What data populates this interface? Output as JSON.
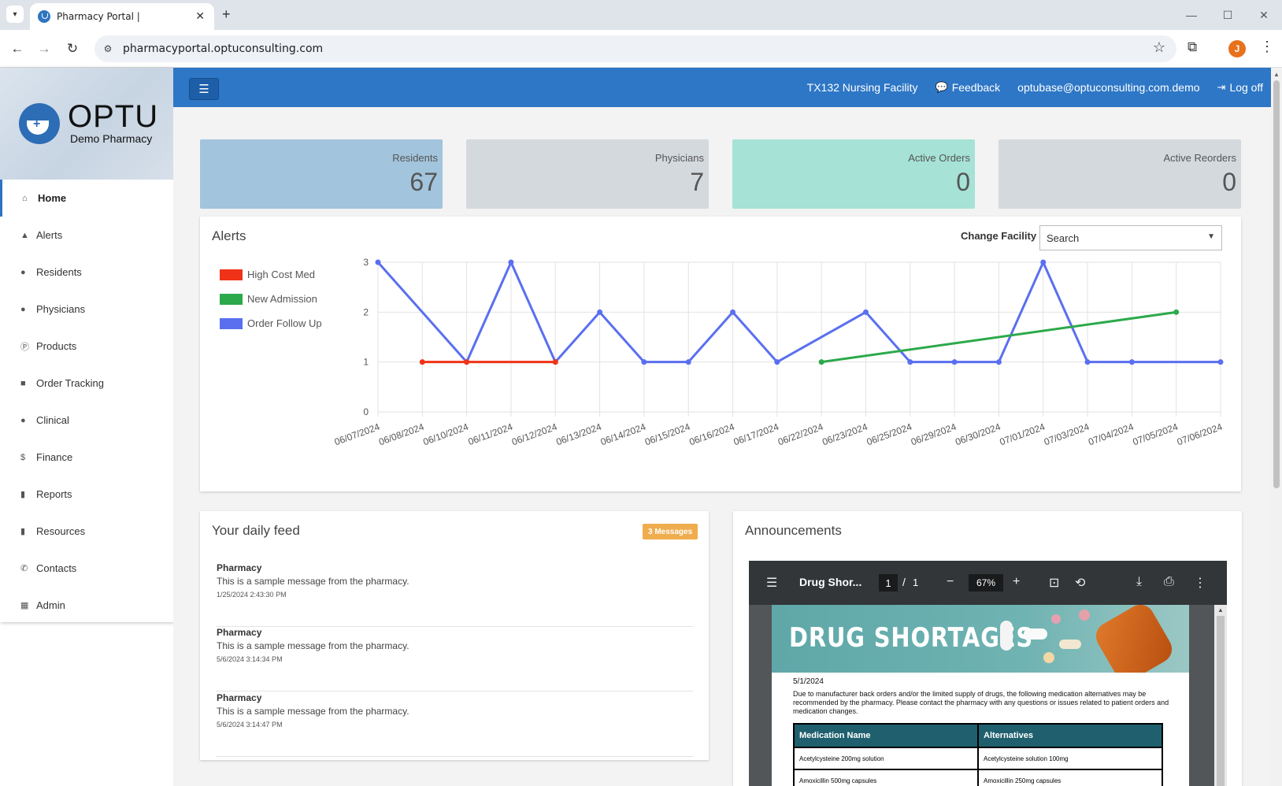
{
  "browser": {
    "tab_title": "Pharmacy Portal |",
    "url": "pharmacyportal.optuconsulting.com",
    "profile_initial": "J"
  },
  "brand": {
    "name": "OPTU",
    "subtitle": "Demo Pharmacy"
  },
  "sidebar": {
    "items": [
      {
        "label": "Home",
        "icon": "home-icon",
        "active": true
      },
      {
        "label": "Alerts",
        "icon": "bell-icon"
      },
      {
        "label": "Residents",
        "icon": "user-icon"
      },
      {
        "label": "Physicians",
        "icon": "user-md-icon"
      },
      {
        "label": "Products",
        "icon": "product-icon"
      },
      {
        "label": "Order Tracking",
        "icon": "truck-icon"
      },
      {
        "label": "Clinical",
        "icon": "user-md-icon"
      },
      {
        "label": "Finance",
        "icon": "dollar-icon"
      },
      {
        "label": "Reports",
        "icon": "file-icon"
      },
      {
        "label": "Resources",
        "icon": "file-icon"
      },
      {
        "label": "Contacts",
        "icon": "phone-icon"
      },
      {
        "label": "Admin",
        "icon": "building-icon"
      }
    ]
  },
  "header": {
    "facility": "TX132 Nursing Facility",
    "feedback": "Feedback",
    "user_email": "optubase@optuconsulting.com.demo",
    "logoff": "Log off"
  },
  "stats": [
    {
      "label": "Residents",
      "value": "67",
      "color": "#a2c4dc"
    },
    {
      "label": "Physicians",
      "value": "7",
      "color": "#d4d9de"
    },
    {
      "label": "Active Orders",
      "value": "0",
      "color": "#a6e2d5"
    },
    {
      "label": "Active Reorders",
      "value": "0",
      "color": "#d4d9de"
    }
  ],
  "alerts": {
    "title": "Alerts",
    "change_facility_label": "Change Facility",
    "facility_select_value": "Search"
  },
  "chart_data": {
    "type": "line",
    "title": "",
    "xlabel": "",
    "ylabel": "",
    "categories": [
      "06/07/2024",
      "06/08/2024",
      "06/10/2024",
      "06/11/2024",
      "06/12/2024",
      "06/13/2024",
      "06/14/2024",
      "06/15/2024",
      "06/16/2024",
      "06/17/2024",
      "06/22/2024",
      "06/23/2024",
      "06/25/2024",
      "06/29/2024",
      "06/30/2024",
      "07/01/2024",
      "07/03/2024",
      "07/04/2024",
      "07/05/2024",
      "07/06/2024"
    ],
    "ylim": [
      0,
      3
    ],
    "yticks": [
      0,
      1,
      2,
      3
    ],
    "grid": true,
    "legend_position": "left",
    "series": [
      {
        "name": "High Cost Med",
        "color": "#f03318",
        "values": [
          null,
          1,
          1,
          null,
          1,
          null,
          null,
          null,
          null,
          null,
          null,
          null,
          null,
          null,
          null,
          null,
          null,
          null,
          null,
          null
        ]
      },
      {
        "name": "New Admission",
        "color": "#2ca94a",
        "values": [
          null,
          null,
          null,
          null,
          null,
          null,
          null,
          null,
          null,
          null,
          1,
          null,
          null,
          null,
          null,
          null,
          null,
          null,
          2,
          null
        ]
      },
      {
        "name": "Order Follow Up",
        "color": "#5a6ff0",
        "values": [
          3,
          null,
          1,
          3,
          1,
          2,
          1,
          1,
          2,
          1,
          null,
          2,
          1,
          1,
          1,
          3,
          1,
          1,
          null,
          1
        ]
      }
    ]
  },
  "feed": {
    "title": "Your daily feed",
    "badge": "3 Messages",
    "items": [
      {
        "from": "Pharmacy",
        "message": "This is a sample message from the pharmacy.",
        "time": "1/25/2024 2:43:30 PM"
      },
      {
        "from": "Pharmacy",
        "message": "This is a sample message from the pharmacy.",
        "time": "5/6/2024 3:14:34 PM"
      },
      {
        "from": "Pharmacy",
        "message": "This is a sample message from the pharmacy.",
        "time": "5/6/2024 3:14:47 PM"
      }
    ]
  },
  "announcements": {
    "title": "Announcements",
    "pdf": {
      "filename": "Drug Shor...",
      "page": "1",
      "separator": "/",
      "total_pages": "1",
      "zoom": "67%",
      "doc_title": "DRUG SHORTAGES",
      "doc_date": "5/1/2024",
      "doc_intro": "Due to manufacturer back orders and/or the limited supply of drugs, the following medication alternatives may be recommended by the pharmacy. Please contact the pharmacy with any questions or issues related to patient orders and medication changes.",
      "table_headers": [
        "Medication Name",
        "Alternatives"
      ],
      "table_rows": [
        [
          "Acetylcysteine 200mg solution",
          "Acetylcysteine solution 100mg"
        ],
        [
          "Amoxicillin 500mg capsules",
          "Amoxicillin 250mg capsules"
        ]
      ]
    }
  }
}
